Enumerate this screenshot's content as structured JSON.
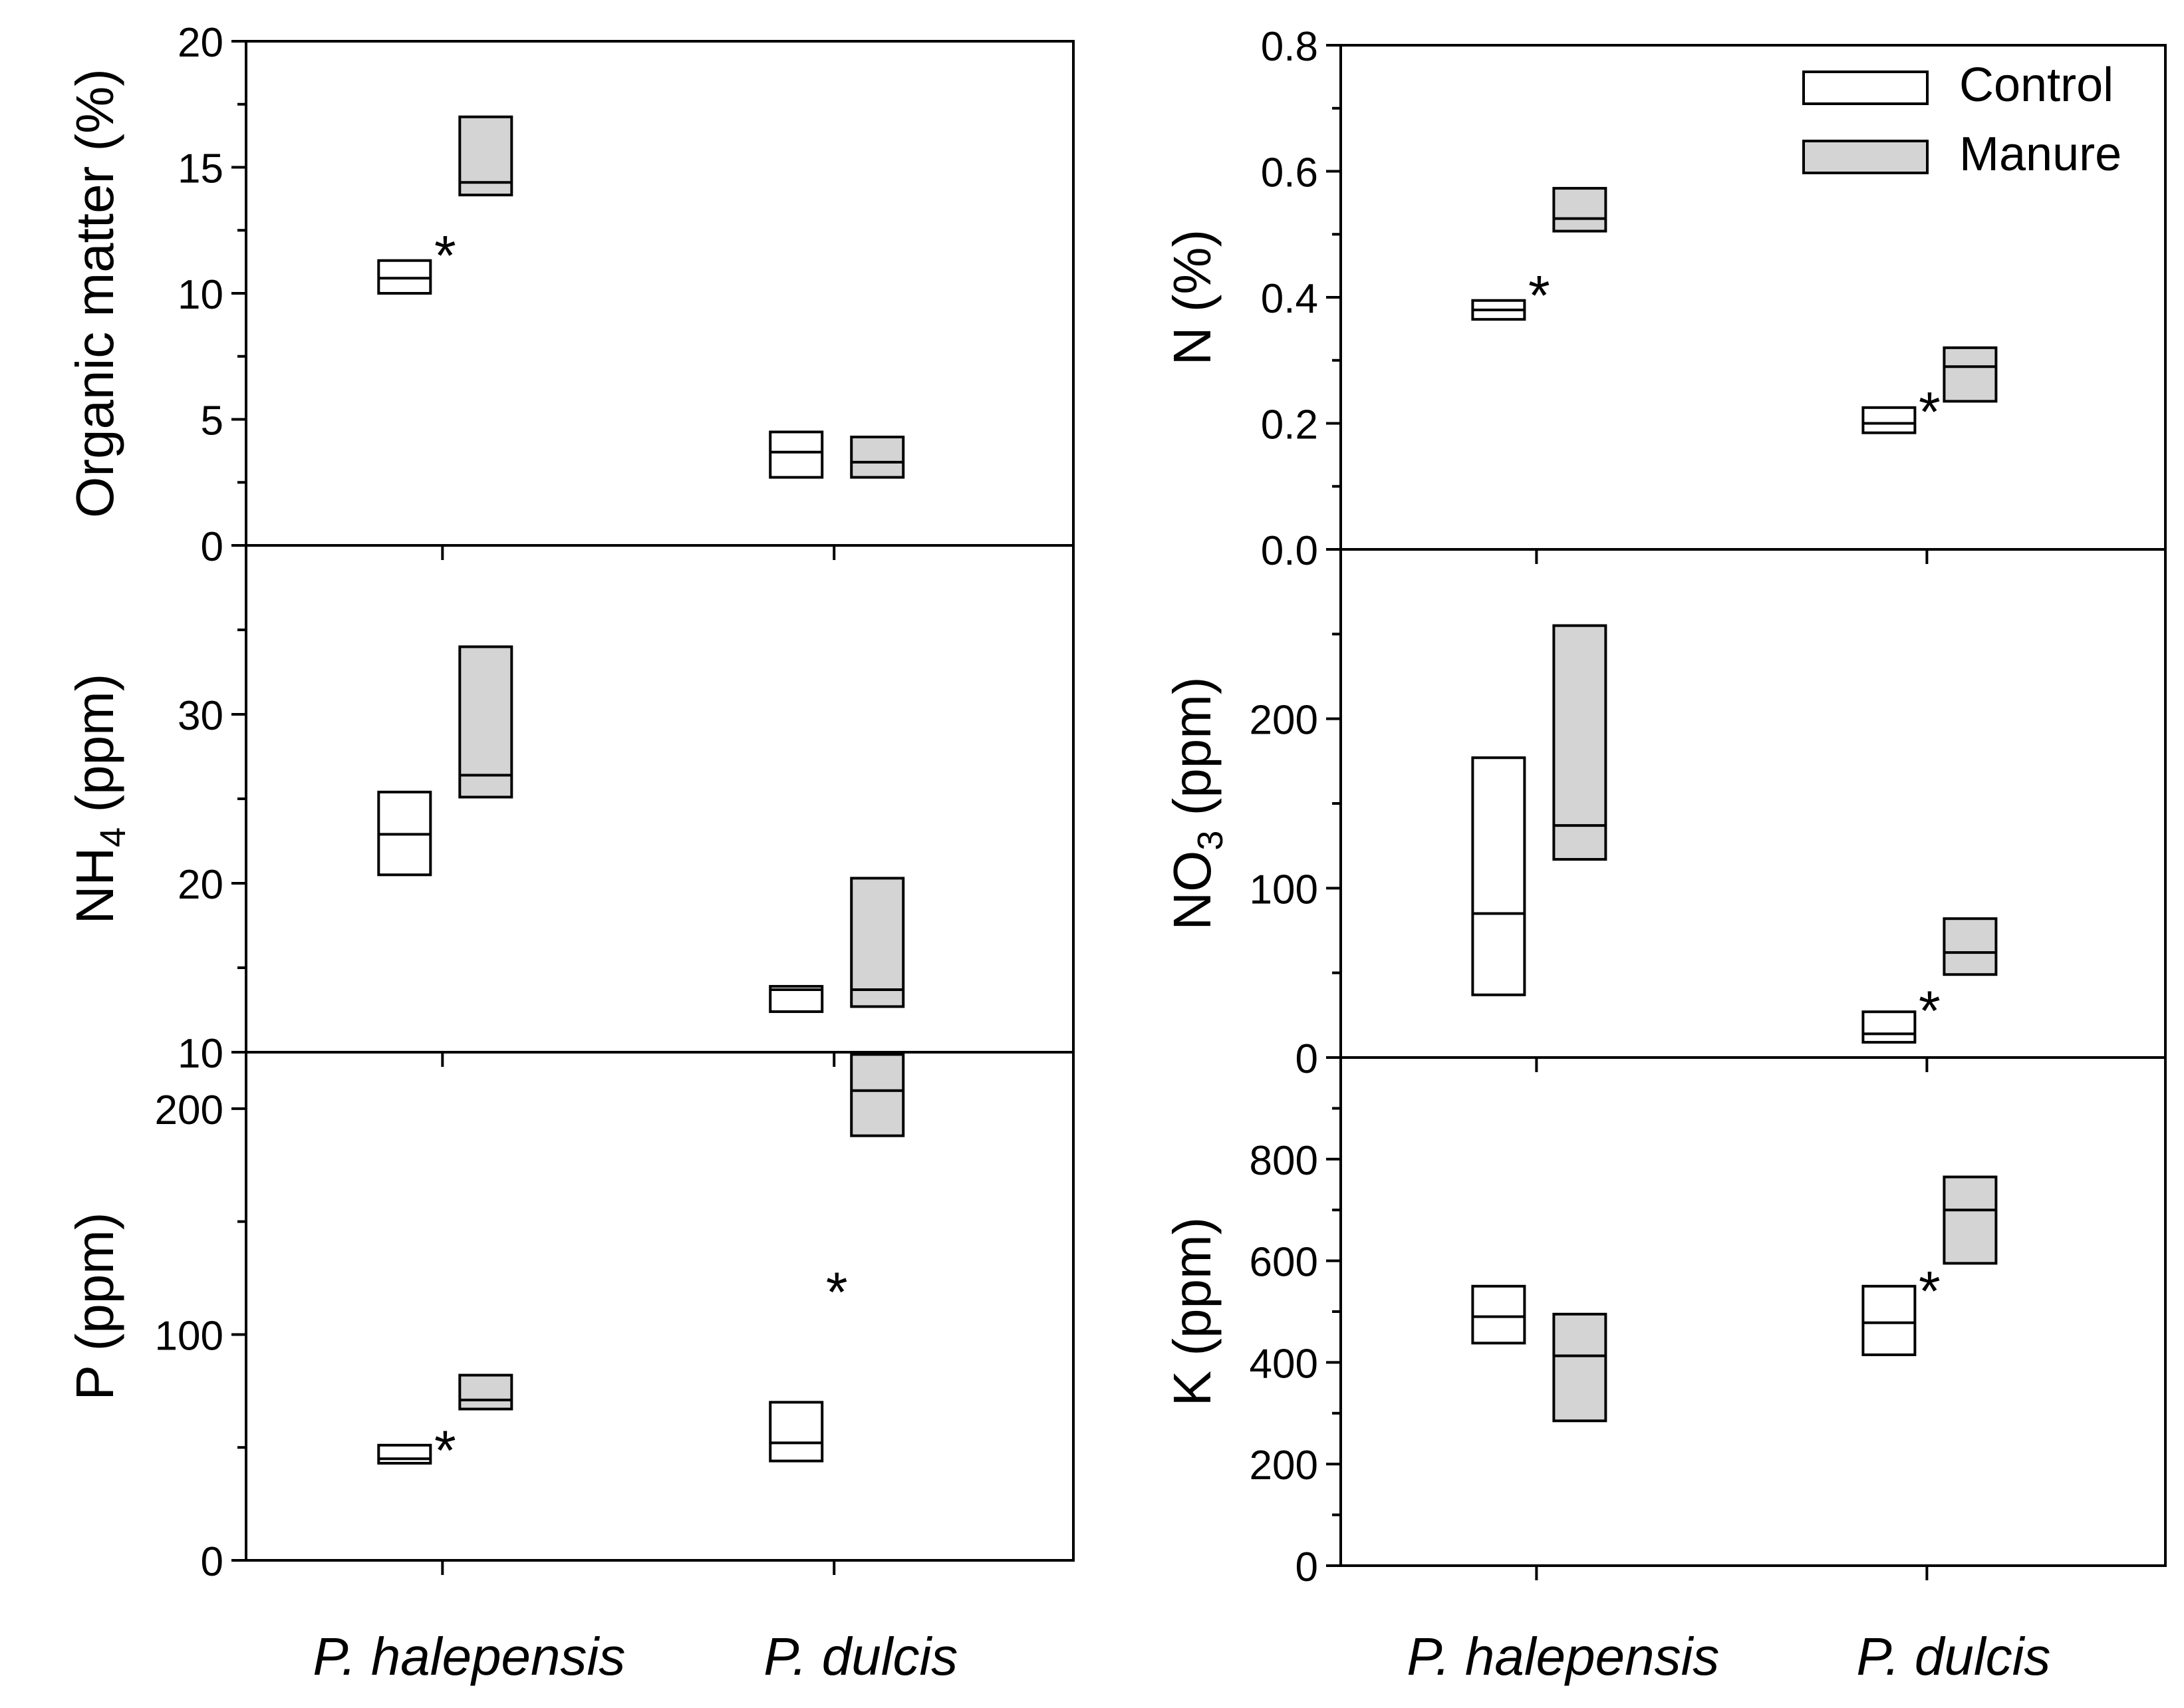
{
  "legend": {
    "items": [
      {
        "label": "Control",
        "fill": "#ffffff"
      },
      {
        "label": "Manure",
        "fill": "#d4d4d4"
      }
    ],
    "placement": "top-right of N (%) panel"
  },
  "chart_data": [
    {
      "type": "box",
      "id": "organic-matter",
      "ylabel": "Organic matter (%)",
      "ylabel_main": "Organic matter (%)",
      "ylabel_sub": "",
      "ylabel_tail": "",
      "ylim": [
        0,
        20
      ],
      "yticks": [
        0,
        5,
        10,
        15,
        20
      ],
      "yticklabels": [
        "0",
        "5",
        "10",
        "15",
        "20"
      ],
      "minor_step": 2.5,
      "categories": [
        "P. halepensis",
        "P. dulcis"
      ],
      "show_xticklabels": false,
      "grid": false,
      "series": [
        {
          "name": "Control",
          "boxes": [
            {
              "low": 10.0,
              "median": 10.6,
              "high": 11.3
            },
            {
              "low": 2.7,
              "median": 3.7,
              "high": 4.5
            }
          ]
        },
        {
          "name": "Manure",
          "boxes": [
            {
              "low": 13.9,
              "median": 14.4,
              "high": 17.0
            },
            {
              "low": 2.7,
              "median": 3.3,
              "high": 4.3
            }
          ]
        }
      ],
      "annotations": [
        {
          "text": "*",
          "category": 0,
          "y": 11.8
        }
      ]
    },
    {
      "type": "box",
      "id": "nh4",
      "ylabel": "NH4 (ppm)",
      "ylabel_main": "NH",
      "ylabel_sub": "4",
      "ylabel_tail": " (ppm)",
      "ylim": [
        10,
        40
      ],
      "yticks": [
        10,
        20,
        30
      ],
      "yticklabels": [
        "10",
        "20",
        "30"
      ],
      "minor_step": 5,
      "categories": [
        "P. halepensis",
        "P. dulcis"
      ],
      "show_xticklabels": false,
      "grid": false,
      "series": [
        {
          "name": "Control",
          "boxes": [
            {
              "low": 20.5,
              "median": 22.9,
              "high": 25.4
            },
            {
              "low": 12.4,
              "median": 13.7,
              "high": 13.9
            }
          ]
        },
        {
          "name": "Manure",
          "boxes": [
            {
              "low": 25.1,
              "median": 26.4,
              "high": 34.0
            },
            {
              "low": 12.7,
              "median": 13.7,
              "high": 20.3
            }
          ]
        }
      ],
      "annotations": []
    },
    {
      "type": "box",
      "id": "p",
      "ylabel": "P (ppm)",
      "ylabel_main": "P (ppm)",
      "ylabel_sub": "",
      "ylabel_tail": "",
      "ylim": [
        0,
        225
      ],
      "yticks": [
        0,
        100,
        200
      ],
      "yticklabels": [
        "0",
        "100",
        "200"
      ],
      "minor_step": 50,
      "categories": [
        "P. halepensis",
        "P. dulcis"
      ],
      "show_xticklabels": true,
      "grid": false,
      "series": [
        {
          "name": "Control",
          "boxes": [
            {
              "low": 43,
              "median": 45,
              "high": 51
            },
            {
              "low": 44,
              "median": 52,
              "high": 70
            }
          ]
        },
        {
          "name": "Manure",
          "boxes": [
            {
              "low": 67,
              "median": 71,
              "high": 82
            },
            {
              "low": 188,
              "median": 208,
              "high": 224
            }
          ]
        }
      ],
      "annotations": [
        {
          "text": "*",
          "category": 0,
          "y": 52
        },
        {
          "text": "*",
          "category": 1,
          "y": 122
        }
      ]
    },
    {
      "type": "box",
      "id": "n",
      "ylabel": "N (%)",
      "ylabel_main": "N (%)",
      "ylabel_sub": "",
      "ylabel_tail": "",
      "ylim": [
        0,
        0.8
      ],
      "yticks": [
        0,
        0.2,
        0.4,
        0.6,
        0.8
      ],
      "yticklabels": [
        "0.0",
        "0.2",
        "0.4",
        "0.6",
        "0.8"
      ],
      "minor_step": 0.1,
      "categories": [
        "P. halepensis",
        "P. dulcis"
      ],
      "show_xticklabels": false,
      "grid": false,
      "series": [
        {
          "name": "Control",
          "boxes": [
            {
              "low": 0.365,
              "median": 0.38,
              "high": 0.395
            },
            {
              "low": 0.185,
              "median": 0.2,
              "high": 0.225
            }
          ]
        },
        {
          "name": "Manure",
          "boxes": [
            {
              "low": 0.505,
              "median": 0.525,
              "high": 0.573
            },
            {
              "low": 0.235,
              "median": 0.29,
              "high": 0.32
            }
          ]
        }
      ],
      "annotations": [
        {
          "text": "*",
          "category": 0,
          "y": 0.415
        },
        {
          "text": "*",
          "category": 1,
          "y": 0.23
        }
      ]
    },
    {
      "type": "box",
      "id": "no3",
      "ylabel": "NO3 (ppm)",
      "ylabel_main": "NO",
      "ylabel_sub": "3",
      "ylabel_tail": " (ppm)",
      "ylim": [
        0,
        300
      ],
      "yticks": [
        0,
        100,
        200
      ],
      "yticklabels": [
        "0",
        "100",
        "200"
      ],
      "minor_step": 50,
      "categories": [
        "P. halepensis",
        "P. dulcis"
      ],
      "show_xticklabels": false,
      "grid": false,
      "series": [
        {
          "name": "Control",
          "boxes": [
            {
              "low": 37,
              "median": 85,
              "high": 177
            },
            {
              "low": 9,
              "median": 14,
              "high": 27
            }
          ]
        },
        {
          "name": "Manure",
          "boxes": [
            {
              "low": 117,
              "median": 137,
              "high": 255
            },
            {
              "low": 49,
              "median": 62,
              "high": 82
            }
          ]
        }
      ],
      "annotations": [
        {
          "text": "*",
          "category": 1,
          "y": 32
        }
      ]
    },
    {
      "type": "box",
      "id": "k",
      "ylabel": "K (ppm)",
      "ylabel_main": "K (ppm)",
      "ylabel_sub": "",
      "ylabel_tail": "",
      "ylim": [
        0,
        1000
      ],
      "yticks": [
        0,
        200,
        400,
        600,
        800
      ],
      "yticklabels": [
        "0",
        "200",
        "400",
        "600",
        "800"
      ],
      "minor_step": 100,
      "categories": [
        "P. halepensis",
        "P. dulcis"
      ],
      "show_xticklabels": true,
      "grid": false,
      "series": [
        {
          "name": "Control",
          "boxes": [
            {
              "low": 438,
              "median": 490,
              "high": 550
            },
            {
              "low": 415,
              "median": 478,
              "high": 550
            }
          ]
        },
        {
          "name": "Manure",
          "boxes": [
            {
              "low": 285,
              "median": 413,
              "high": 495
            },
            {
              "low": 595,
              "median": 700,
              "high": 765
            }
          ]
        }
      ],
      "annotations": [
        {
          "text": "*",
          "category": 1,
          "y": 555
        }
      ]
    }
  ]
}
